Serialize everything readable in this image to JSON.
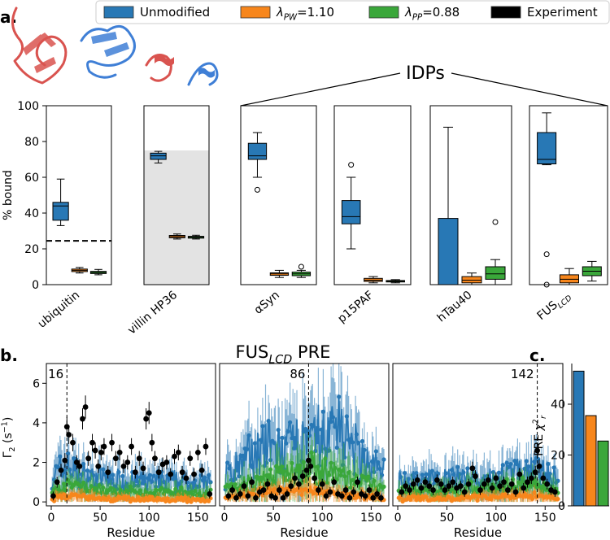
{
  "panel_labels": {
    "a": "a.",
    "b": "b.",
    "c": "c."
  },
  "colors": {
    "unmodified": "#2878b5",
    "pw": "#f7861c",
    "pp": "#3aa73a",
    "experiment": "#000000",
    "shade": "#e3e3e3"
  },
  "legend": {
    "unmodified": "Unmodified",
    "pw": {
      "main": "λ",
      "sub": "PW",
      "rest": "=1.10"
    },
    "pp": {
      "main": "λ",
      "sub": "PP",
      "rest": "=0.88"
    },
    "experiment": "Experiment"
  },
  "idps_label": "IDPs",
  "proteins": [
    {
      "main": "ubiquitin",
      "sub": ""
    },
    {
      "main": "villin HP36",
      "sub": ""
    },
    {
      "main": "αSyn",
      "sub": ""
    },
    {
      "main": "p15PAF",
      "sub": ""
    },
    {
      "main": "hTau40",
      "sub": ""
    },
    {
      "main": "FUS",
      "sub": "LCD"
    }
  ],
  "chart_data": [
    {
      "type": "box",
      "id": "percent-bound",
      "ylabel": "% bound",
      "ylim": [
        0,
        100
      ],
      "yticks": [
        0,
        20,
        40,
        60,
        80,
        100
      ],
      "series_names": [
        "Unmodified",
        "λPW=1.10",
        "λPP=0.88"
      ],
      "categories": [
        "ubiquitin",
        "villin HP36",
        "αSyn",
        "p15PAF",
        "hTau40",
        "FUSLCD"
      ],
      "experiment_reference": [
        {
          "category": "ubiquitin",
          "value": 24.5,
          "style": "dashed line"
        },
        {
          "category": "villin HP36",
          "value_range": [
            0,
            75
          ],
          "style": "shaded band"
        }
      ],
      "boxes": [
        [
          {
            "whislo": 33,
            "q1": 36,
            "med": 44,
            "q3": 46,
            "whishi": 59,
            "fliers": []
          },
          {
            "whislo": 6.5,
            "q1": 7.3,
            "med": 8,
            "q3": 8.7,
            "whishi": 9.6,
            "fliers": []
          },
          {
            "whislo": 5.5,
            "q1": 6.2,
            "med": 6.8,
            "q3": 7.4,
            "whishi": 8.5,
            "fliers": []
          }
        ],
        [
          {
            "whislo": 68,
            "q1": 70,
            "med": 72,
            "q3": 73.5,
            "whishi": 74.5,
            "fliers": []
          },
          {
            "whislo": 25.5,
            "q1": 26.2,
            "med": 26.8,
            "q3": 27.5,
            "whishi": 28.3,
            "fliers": []
          },
          {
            "whislo": 25.5,
            "q1": 26,
            "med": 26.5,
            "q3": 27,
            "whishi": 27.6,
            "fliers": []
          }
        ],
        [
          {
            "whislo": 60,
            "q1": 70,
            "med": 72,
            "q3": 79,
            "whishi": 85,
            "fliers": [
              53
            ]
          },
          {
            "whislo": 4,
            "q1": 5.2,
            "med": 6,
            "q3": 6.6,
            "whishi": 8,
            "fliers": []
          },
          {
            "whislo": 4,
            "q1": 5,
            "med": 6,
            "q3": 7,
            "whishi": 8,
            "fliers": [
              10
            ]
          }
        ],
        [
          {
            "whislo": 20,
            "q1": 34,
            "med": 38,
            "q3": 47,
            "whishi": 60,
            "fliers": [
              67
            ]
          },
          {
            "whislo": 1,
            "q1": 1.8,
            "med": 2.5,
            "q3": 3.5,
            "whishi": 4.5,
            "fliers": []
          },
          {
            "whislo": 1,
            "q1": 1.5,
            "med": 1.9,
            "q3": 2.3,
            "whishi": 2.8,
            "fliers": []
          }
        ],
        [
          {
            "whislo": 0,
            "q1": 0,
            "med": 0,
            "q3": 37,
            "whishi": 88,
            "fliers": []
          },
          {
            "whislo": 0,
            "q1": 1,
            "med": 2.5,
            "q3": 4.5,
            "whishi": 6.5,
            "fliers": []
          },
          {
            "whislo": 0,
            "q1": 3,
            "med": 6,
            "q3": 10,
            "whishi": 14,
            "fliers": [
              35
            ]
          }
        ],
        [
          {
            "whislo": 67,
            "q1": 67.5,
            "med": 70,
            "q3": 85,
            "whishi": 96,
            "fliers": [
              17,
              0
            ]
          },
          {
            "whislo": 0,
            "q1": 1,
            "med": 3,
            "q3": 5.5,
            "whishi": 9,
            "fliers": []
          },
          {
            "whislo": 2,
            "q1": 5,
            "med": 7.5,
            "q3": 10,
            "whishi": 13,
            "fliers": []
          }
        ]
      ]
    },
    {
      "type": "line",
      "id": "fus-lcd-pre",
      "title": {
        "main": "FUS",
        "sub": "LCD",
        "rest": " PRE"
      },
      "ylabel": {
        "main": "Γ",
        "sub": "2",
        "rest": " (s",
        "sup": "−1",
        "end": ")"
      },
      "xlabel": "Residue",
      "xlim": [
        -5,
        168
      ],
      "ylim": [
        -0.2,
        7
      ],
      "xticks": [
        0,
        50,
        100,
        150
      ],
      "yticks": [
        0,
        2,
        4,
        6
      ],
      "series_names": [
        "Unmodified",
        "λPW=1.10",
        "λPP=0.88",
        "Experiment"
      ],
      "subplots": [
        {
          "label_site": 16,
          "unmodified_curve": [
            [
              0,
              1.2
            ],
            [
              16,
              1.8
            ],
            [
              30,
              1.3
            ],
            [
              60,
              1.1
            ],
            [
              100,
              1.0
            ],
            [
              130,
              1.0
            ],
            [
              163,
              0.9
            ]
          ],
          "pw_curve": [
            [
              0,
              0.15
            ],
            [
              16,
              0.3
            ],
            [
              60,
              0.15
            ],
            [
              163,
              0.1
            ]
          ],
          "pp_curve": [
            [
              0,
              0.5
            ],
            [
              16,
              0.8
            ],
            [
              60,
              0.5
            ],
            [
              100,
              0.5
            ],
            [
              163,
              0.4
            ]
          ],
          "experiment_points": [
            [
              2,
              0.3
            ],
            [
              6,
              1.0
            ],
            [
              10,
              1.6
            ],
            [
              14,
              2.1
            ],
            [
              16,
              3.8
            ],
            [
              18,
              3.4
            ],
            [
              22,
              3.0
            ],
            [
              26,
              2.0
            ],
            [
              29,
              1.8
            ],
            [
              32,
              4.2
            ],
            [
              35,
              4.8
            ],
            [
              38,
              2.2
            ],
            [
              42,
              3.0
            ],
            [
              45,
              2.6
            ],
            [
              48,
              1.8
            ],
            [
              51,
              2.5
            ],
            [
              54,
              2.8
            ],
            [
              58,
              1.5
            ],
            [
              62,
              3.0
            ],
            [
              66,
              2.2
            ],
            [
              70,
              2.5
            ],
            [
              74,
              1.8
            ],
            [
              78,
              2.0
            ],
            [
              82,
              2.8
            ],
            [
              86,
              1.5
            ],
            [
              90,
              2.2
            ],
            [
              94,
              1.7
            ],
            [
              97,
              4.2
            ],
            [
              100,
              4.5
            ],
            [
              103,
              3.0
            ],
            [
              106,
              2.2
            ],
            [
              110,
              1.5
            ],
            [
              114,
              1.9
            ],
            [
              118,
              2.0
            ],
            [
              122,
              1.4
            ],
            [
              126,
              2.3
            ],
            [
              130,
              2.5
            ],
            [
              134,
              1.5
            ],
            [
              138,
              1.2
            ],
            [
              142,
              2.2
            ],
            [
              146,
              1.4
            ],
            [
              150,
              2.5
            ],
            [
              154,
              1.6
            ],
            [
              158,
              2.8
            ],
            [
              162,
              0.4
            ]
          ]
        },
        {
          "label_site": 86,
          "unmodified_curve": [
            [
              0,
              1.2
            ],
            [
              20,
              2.0
            ],
            [
              40,
              2.8
            ],
            [
              60,
              2.4
            ],
            [
              80,
              3.0
            ],
            [
              86,
              2.5
            ],
            [
              95,
              3.3
            ],
            [
              105,
              3.0
            ],
            [
              115,
              4.5
            ],
            [
              125,
              3.0
            ],
            [
              140,
              2.2
            ],
            [
              163,
              1.5
            ]
          ],
          "pw_curve": [
            [
              0,
              0.2
            ],
            [
              40,
              0.5
            ],
            [
              86,
              0.6
            ],
            [
              120,
              0.4
            ],
            [
              163,
              0.2
            ]
          ],
          "pp_curve": [
            [
              0,
              0.6
            ],
            [
              40,
              1.1
            ],
            [
              86,
              1.8
            ],
            [
              115,
              1.4
            ],
            [
              163,
              0.6
            ]
          ],
          "experiment_points": [
            [
              4,
              0.3
            ],
            [
              8,
              0.6
            ],
            [
              12,
              0.2
            ],
            [
              16,
              0.4
            ],
            [
              20,
              0.8
            ],
            [
              24,
              0.3
            ],
            [
              28,
              1.0
            ],
            [
              32,
              0.2
            ],
            [
              36,
              0.5
            ],
            [
              40,
              0.6
            ],
            [
              44,
              0.9
            ],
            [
              48,
              0.3
            ],
            [
              52,
              0.2
            ],
            [
              56,
              0.6
            ],
            [
              60,
              0.2
            ],
            [
              64,
              0.4
            ],
            [
              68,
              0.8
            ],
            [
              72,
              1.2
            ],
            [
              76,
              0.9
            ],
            [
              80,
              1.3
            ],
            [
              84,
              1.6
            ],
            [
              86,
              2.1
            ],
            [
              88,
              1.8
            ],
            [
              92,
              1.2
            ],
            [
              96,
              0.6
            ],
            [
              100,
              0.9
            ],
            [
              104,
              0.3
            ],
            [
              108,
              0.5
            ],
            [
              112,
              1.0
            ],
            [
              116,
              0.4
            ],
            [
              120,
              0.3
            ],
            [
              124,
              0.6
            ],
            [
              128,
              0.2
            ],
            [
              132,
              0.5
            ],
            [
              136,
              1.0
            ],
            [
              140,
              0.4
            ],
            [
              144,
              0.3
            ],
            [
              148,
              0.6
            ],
            [
              152,
              0.2
            ],
            [
              156,
              0.4
            ],
            [
              160,
              0.2
            ]
          ]
        },
        {
          "label_site": 142,
          "unmodified_curve": [
            [
              0,
              1.0
            ],
            [
              50,
              1.2
            ],
            [
              100,
              1.2
            ],
            [
              142,
              1.6
            ],
            [
              163,
              1.0
            ]
          ],
          "pw_curve": [
            [
              0,
              0.15
            ],
            [
              60,
              0.2
            ],
            [
              142,
              0.3
            ],
            [
              163,
              0.15
            ]
          ],
          "pp_curve": [
            [
              0,
              0.5
            ],
            [
              60,
              0.6
            ],
            [
              142,
              0.9
            ],
            [
              163,
              0.5
            ]
          ],
          "experiment_points": [
            [
              4,
              0.5
            ],
            [
              8,
              0.8
            ],
            [
              12,
              0.6
            ],
            [
              16,
              0.9
            ],
            [
              20,
              1.1
            ],
            [
              24,
              0.7
            ],
            [
              28,
              1.0
            ],
            [
              32,
              0.8
            ],
            [
              36,
              0.6
            ],
            [
              40,
              1.1
            ],
            [
              44,
              0.9
            ],
            [
              48,
              0.6
            ],
            [
              52,
              0.8
            ],
            [
              56,
              1.0
            ],
            [
              60,
              0.7
            ],
            [
              64,
              0.8
            ],
            [
              68,
              0.5
            ],
            [
              72,
              0.9
            ],
            [
              76,
              1.7
            ],
            [
              79,
              1.3
            ],
            [
              84,
              0.6
            ],
            [
              88,
              0.9
            ],
            [
              92,
              1.1
            ],
            [
              96,
              0.7
            ],
            [
              100,
              1.2
            ],
            [
              104,
              0.8
            ],
            [
              108,
              1.0
            ],
            [
              112,
              0.6
            ],
            [
              116,
              0.9
            ],
            [
              120,
              0.5
            ],
            [
              124,
              1.4
            ],
            [
              128,
              0.7
            ],
            [
              132,
              1.0
            ],
            [
              136,
              1.2
            ],
            [
              140,
              1.5
            ],
            [
              142,
              2.6
            ],
            [
              144,
              1.8
            ],
            [
              148,
              1.2
            ],
            [
              152,
              0.9
            ],
            [
              156,
              0.6
            ],
            [
              160,
              0.5
            ]
          ]
        }
      ]
    },
    {
      "type": "bar",
      "id": "pre-chi2",
      "ylabel": {
        "main": "PRE ",
        "chi": "χ",
        "sup": "2",
        "sub": "r"
      },
      "categories": [
        "Unmodified",
        "λPW=1.10",
        "λPP=0.88"
      ],
      "values": [
        53,
        35.5,
        25.5
      ],
      "ylim": [
        0,
        56
      ],
      "yticks": [
        0,
        20,
        40
      ]
    }
  ]
}
